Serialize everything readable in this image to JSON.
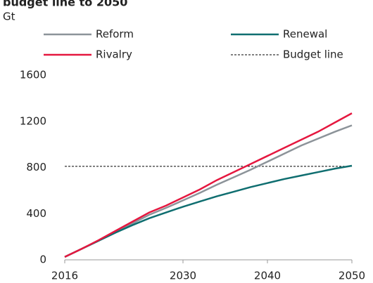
{
  "chart_data": {
    "type": "line",
    "title": "budget line to 2050",
    "y_unit": "Gt",
    "x": [
      2016,
      2018,
      2020,
      2022,
      2024,
      2026,
      2028,
      2030,
      2032,
      2034,
      2036,
      2038,
      2040,
      2042,
      2044,
      2046,
      2048,
      2050
    ],
    "series": [
      {
        "name": "Reform",
        "color": "#8c9399",
        "values": [
          25,
          95,
          165,
          240,
          315,
          390,
          450,
          515,
          580,
          650,
          715,
          780,
          850,
          920,
          990,
          1050,
          1110,
          1165
        ]
      },
      {
        "name": "Renewal",
        "color": "#0f6e70",
        "values": [
          25,
          95,
          165,
          235,
          300,
          360,
          410,
          460,
          505,
          550,
          590,
          630,
          665,
          700,
          730,
          760,
          790,
          815
        ]
      },
      {
        "name": "Rivalry",
        "color": "#e5173f",
        "values": [
          25,
          95,
          170,
          250,
          330,
          410,
          470,
          540,
          610,
          690,
          760,
          830,
          900,
          970,
          1040,
          1110,
          1190,
          1270
        ]
      }
    ],
    "reference_line": {
      "name": "Budget line",
      "value": 810,
      "color": "#000000"
    },
    "xlim": [
      2016,
      2050
    ],
    "xticks": [
      2016,
      2030,
      2040,
      2050
    ],
    "ylim": [
      0,
      1600
    ],
    "yticks": [
      0,
      400,
      800,
      1200,
      1600
    ]
  }
}
